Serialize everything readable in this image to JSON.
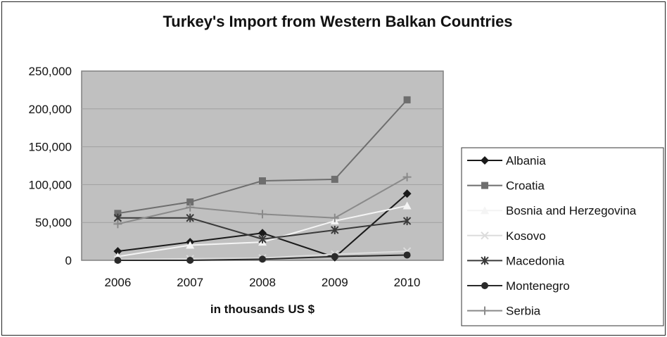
{
  "chart_data": {
    "type": "line",
    "title": "Turkey's Import from Western Balkan Countries",
    "xlabel": "in thousands US $",
    "ylabel": "",
    "categories": [
      "2006",
      "2007",
      "2008",
      "2009",
      "2010"
    ],
    "ylim": [
      0,
      250000
    ],
    "yticks": [
      0,
      50000,
      100000,
      150000,
      200000,
      250000
    ],
    "ytick_labels": [
      "0",
      "50,000",
      "100,000",
      "150,000",
      "200,000",
      "250,000"
    ],
    "grid": true,
    "legend_position": "right",
    "plot_background": "#c0c0c0",
    "series": [
      {
        "name": "Albania",
        "values": [
          12000,
          24000,
          36000,
          4000,
          88000
        ],
        "color": "#1a1a1a",
        "marker": "diamond"
      },
      {
        "name": "Croatia",
        "values": [
          62000,
          77000,
          105000,
          107000,
          212000
        ],
        "color": "#6e6e6e",
        "marker": "square"
      },
      {
        "name": "Bosnia and Herzegovina",
        "values": [
          5000,
          20000,
          24000,
          52000,
          72000
        ],
        "color": "#f4f4f4",
        "marker": "triangle"
      },
      {
        "name": "Kosovo",
        "values": [
          1000,
          2000,
          3000,
          8000,
          12000
        ],
        "color": "#dcdcdc",
        "marker": "x"
      },
      {
        "name": "Macedonia",
        "values": [
          56000,
          56000,
          28000,
          40000,
          52000
        ],
        "color": "#3a3a3a",
        "marker": "star"
      },
      {
        "name": "Montenegro",
        "values": [
          0,
          0,
          1500,
          5000,
          7000
        ],
        "color": "#2a2a2a",
        "marker": "circle"
      },
      {
        "name": "Serbia",
        "values": [
          48000,
          70000,
          61000,
          56000,
          110000
        ],
        "color": "#8a8a8a",
        "marker": "plus"
      }
    ]
  }
}
